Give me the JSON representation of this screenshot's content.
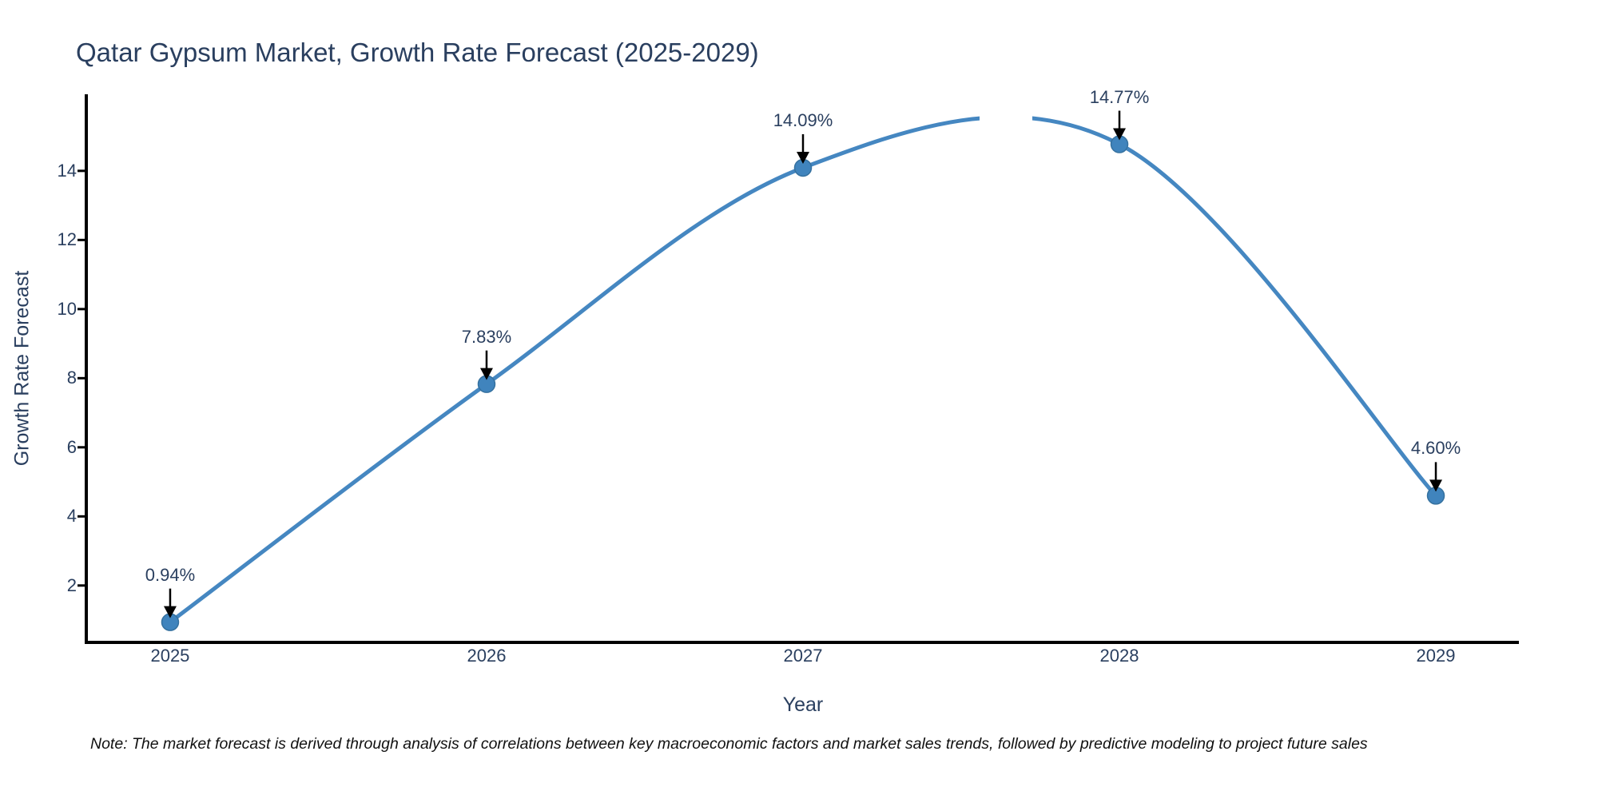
{
  "title": "Qatar Gypsum Market, Growth Rate Forecast (2025-2029)",
  "footnote": "Note: The market forecast is derived through analysis of correlations between key macroeconomic factors and market sales trends, followed by predictive modeling to project future sales",
  "chart_data": {
    "type": "line",
    "line_shape": "spline",
    "title": "Qatar Gypsum Market, Growth Rate Forecast (2025-2029)",
    "xlabel": "Year",
    "ylabel": "Growth Rate Forecast",
    "x": [
      2025,
      2026,
      2027,
      2028,
      2029
    ],
    "series": [
      {
        "name": "Growth Rate Forecast",
        "values": [
          0.94,
          7.83,
          14.09,
          14.77,
          4.6
        ]
      }
    ],
    "annotations": [
      "0.94%",
      "7.83%",
      "14.09%",
      "14.77%",
      "4.60%"
    ],
    "xticks": [
      "2025",
      "2026",
      "2027",
      "2028",
      "2029"
    ],
    "yticks": [
      2,
      4,
      6,
      8,
      10,
      12,
      14
    ],
    "xlim": [
      2024.74,
      2029.26
    ],
    "ylim": [
      0.4,
      16.17
    ],
    "grid": false,
    "legend": "none",
    "colors": {
      "line": "#4587c1",
      "marker": "#4084bd",
      "marker_edge": "#35719f",
      "axis_line": "#000000",
      "tick_text": "#2a3f5f",
      "title_text": "#2a3f5f",
      "arrow": "#000000",
      "background": "#ffffff"
    }
  }
}
